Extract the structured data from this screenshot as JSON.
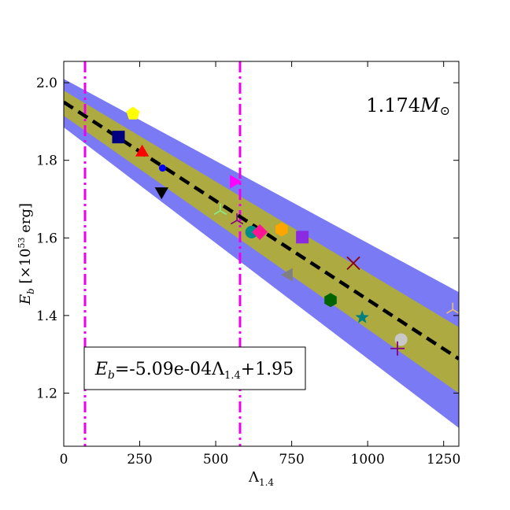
{
  "chart_data": {
    "type": "scatter",
    "xlabel": "Λ1.4",
    "ylabel": "E_b [×10^53 erg]",
    "xlim": [
      0,
      1300
    ],
    "ylim": [
      1.063,
      2.055
    ],
    "x_ticks": [
      0,
      250,
      500,
      750,
      1000,
      1250
    ],
    "x_tick_labels": [
      "0",
      "250",
      "500",
      "750",
      "1000",
      "1250"
    ],
    "y_ticks": [
      1.2,
      1.4,
      1.6,
      1.8,
      2.0
    ],
    "y_tick_labels": [
      "1.2",
      "1.4",
      "1.6",
      "1.8",
      "2.0"
    ],
    "annotation": "1.174M⊙",
    "equation_label": "Eb=-5.09e-04Λ1.4+1.95",
    "fit": {
      "slope": -0.000509,
      "intercept": 1.95
    },
    "bands": [
      {
        "name": "outer",
        "color": "#7a7af5",
        "upper": [
          [
            0,
            2.01
          ],
          [
            1300,
            1.46
          ]
        ],
        "lower": [
          [
            0,
            1.885
          ],
          [
            1300,
            1.11
          ]
        ]
      },
      {
        "name": "inner",
        "color": "#acaa40",
        "upper": [
          [
            0,
            1.98
          ],
          [
            1300,
            1.37
          ]
        ],
        "lower": [
          [
            0,
            1.915
          ],
          [
            1300,
            1.2
          ]
        ]
      }
    ],
    "vlines": [
      {
        "x": 70,
        "color": "#ee00ee"
      },
      {
        "x": 580,
        "color": "#ee00ee"
      }
    ],
    "points": [
      {
        "x": 228,
        "y": 1.92,
        "marker": "pentagon",
        "color": "#ffff00"
      },
      {
        "x": 180,
        "y": 1.86,
        "marker": "square",
        "color": "#000080"
      },
      {
        "x": 258,
        "y": 1.82,
        "marker": "triangle-up",
        "color": "#ff0000"
      },
      {
        "x": 325,
        "y": 1.78,
        "marker": "circle-small",
        "color": "#0000ff"
      },
      {
        "x": 322,
        "y": 1.72,
        "marker": "triangle-down",
        "color": "#000000"
      },
      {
        "x": 560,
        "y": 1.745,
        "marker": "triangle-right",
        "color": "#ff00ff"
      },
      {
        "x": 515,
        "y": 1.67,
        "marker": "tri",
        "color": "#88ee88"
      },
      {
        "x": 570,
        "y": 1.645,
        "marker": "tri",
        "color": "#800080"
      },
      {
        "x": 618,
        "y": 1.615,
        "marker": "circle",
        "color": "#008b8b"
      },
      {
        "x": 645,
        "y": 1.615,
        "marker": "diamond",
        "color": "#ff1493"
      },
      {
        "x": 717,
        "y": 1.622,
        "marker": "hexagon",
        "color": "#ffa500"
      },
      {
        "x": 785,
        "y": 1.602,
        "marker": "square",
        "color": "#8a2be2"
      },
      {
        "x": 953,
        "y": 1.535,
        "marker": "x",
        "color": "#8b0000"
      },
      {
        "x": 740,
        "y": 1.505,
        "marker": "triangle-left",
        "color": "#808080"
      },
      {
        "x": 878,
        "y": 1.44,
        "marker": "hexagon",
        "color": "#006400"
      },
      {
        "x": 982,
        "y": 1.395,
        "marker": "star",
        "color": "#008080"
      },
      {
        "x": 1110,
        "y": 1.338,
        "marker": "circle",
        "color": "#c8c8c8"
      },
      {
        "x": 1098,
        "y": 1.315,
        "marker": "plus",
        "color": "#800080"
      },
      {
        "x": 1280,
        "y": 1.415,
        "marker": "tri",
        "color": "#e8c070"
      }
    ]
  }
}
